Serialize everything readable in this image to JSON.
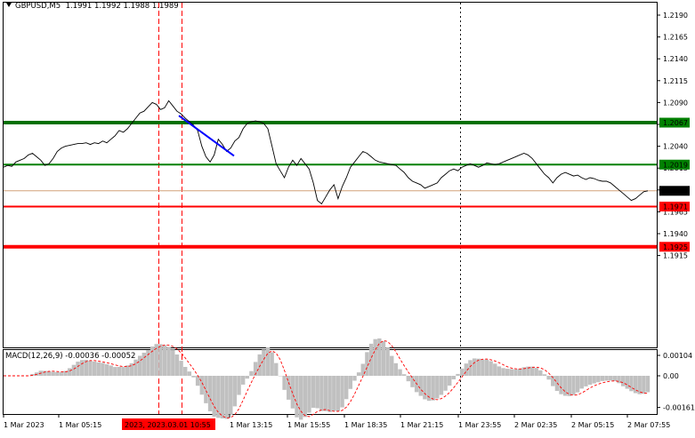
{
  "header": {
    "symbol": "GBPUSD,M5",
    "open": "1.1991",
    "high": "1.1992",
    "low": "1.1988",
    "close": "1.1989"
  },
  "macd": {
    "label": "MACD(12,26,9) -0.00036 -0.00052",
    "axis_labels": [
      "0.00104",
      "0.00",
      "-0.00161"
    ],
    "axis_values": [
      0.00104,
      0.0,
      -0.00161
    ]
  },
  "colors": {
    "price_line": "#000000",
    "green_level": "#008000",
    "red_level": "#ff0000",
    "current_price": "#000000",
    "trend_line": "#0000ff",
    "macd_hist": "#c0c0c0",
    "macd_signal": "#ff0000",
    "grid": "#000000",
    "highlight_time_bg": "#ff0000"
  },
  "chart_data": {
    "type": "line",
    "title": "",
    "xlabel": "",
    "ylabel": "",
    "ylim": [
      1.1905,
      1.22
    ],
    "y_ticks": [
      "1.2190",
      "1.2165",
      "1.2140",
      "1.2115",
      "1.2090",
      "1.2065",
      "1.2040",
      "1.2015",
      "1.1990",
      "1.1965",
      "1.1940",
      "1.1915"
    ],
    "y_tick_values": [
      1.219,
      1.2165,
      1.214,
      1.2115,
      1.209,
      1.2065,
      1.204,
      1.2015,
      1.199,
      1.1965,
      1.194,
      1.1915
    ],
    "x_ticks": [
      "1 Mar 2023",
      "1 Mar 05:15",
      "1 Mar 13:15",
      "1 Mar 15:55",
      "1 Mar 18:35",
      "1 Mar 21:15",
      "1 Mar 23:55",
      "2 Mar 02:35",
      "2 Mar 05:15",
      "2 Mar 07:55"
    ],
    "highlight_time": "2023, 2023.03.01 10:55",
    "levels": [
      {
        "label": "1.2067",
        "value": 1.2067,
        "color": "green",
        "style": "thick"
      },
      {
        "label": "1.2019",
        "value": 1.2019,
        "color": "green",
        "style": "thin"
      },
      {
        "label": "1.1989",
        "value": 1.1989,
        "color": "black",
        "style": "current"
      },
      {
        "label": "1.1971",
        "value": 1.1971,
        "color": "red",
        "style": "thin"
      },
      {
        "label": "1.1925",
        "value": 1.1925,
        "color": "red",
        "style": "thick"
      }
    ],
    "series": [
      {
        "values": [
          1.2016,
          1.2018,
          1.2017,
          1.2022,
          1.2024,
          1.2026,
          1.203,
          1.2032,
          1.2028,
          1.2024,
          1.2018,
          1.202,
          1.2026,
          1.2034,
          1.2038,
          1.204,
          1.2041,
          1.2042,
          1.2043,
          1.2043,
          1.2044,
          1.2042,
          1.2044,
          1.2043,
          1.2046,
          1.2044,
          1.2048,
          1.2052,
          1.2058,
          1.2056,
          1.206,
          1.2066,
          1.2072,
          1.2078,
          1.208,
          1.2085,
          1.209,
          1.2088,
          1.2082,
          1.2084,
          1.2092,
          1.2086,
          1.208,
          1.2077,
          1.2072,
          1.2068,
          1.2064,
          1.2058,
          1.204,
          1.2028,
          1.2022,
          1.203,
          1.2048,
          1.2042,
          1.2034,
          1.2038,
          1.2046,
          1.205,
          1.206,
          1.2066,
          1.2068,
          1.2069,
          1.2068,
          1.2066,
          1.206,
          1.204,
          1.202,
          1.2012,
          1.2004,
          1.2016,
          1.2024,
          1.2018,
          1.2026,
          1.202,
          1.2014,
          1.1998,
          1.1978,
          1.1974,
          1.1982,
          1.199,
          1.1996,
          1.198,
          1.1994,
          1.2004,
          1.2016,
          1.2022,
          1.2028,
          1.2034,
          1.2032,
          1.2028,
          1.2024,
          1.2022,
          1.2021,
          1.202,
          1.2019,
          1.2018,
          1.2014,
          1.201,
          1.2004,
          1.2,
          1.1998,
          1.1996,
          1.1992,
          1.1994,
          1.1996,
          1.1998,
          1.2004,
          1.2008,
          1.2012,
          1.2014,
          1.2012,
          1.2016,
          1.2018,
          1.202,
          1.2018,
          1.2016,
          1.2018,
          1.2021,
          1.202,
          1.2019,
          1.202,
          1.2022,
          1.2024,
          1.2026,
          1.2028,
          1.203,
          1.2032,
          1.203,
          1.2026,
          1.202,
          1.2014,
          1.2008,
          1.2004,
          1.1998,
          1.2004,
          1.2008,
          1.201,
          1.2008,
          1.2006,
          1.2007,
          1.2004,
          1.2002,
          1.2004,
          1.2003,
          1.2001,
          1.2,
          1.2,
          1.1998,
          1.1994,
          1.199,
          1.1986,
          1.1982,
          1.1978,
          1.198,
          1.1984,
          1.1988,
          1.1989
        ]
      }
    ],
    "trend_line": {
      "from": {
        "x": "1 Mar 10:55",
        "y": 1.2075
      },
      "to": {
        "x": "1 Mar 12:55",
        "y": 1.2029
      }
    }
  }
}
